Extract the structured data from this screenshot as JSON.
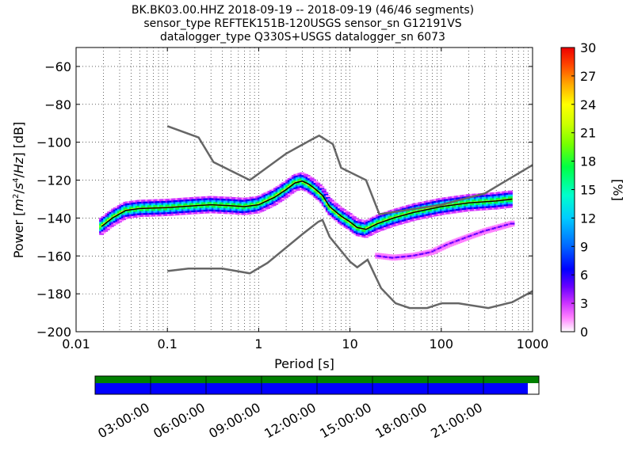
{
  "chart_data": {
    "type": "heatmap",
    "title_lines": [
      "BK.BK03.00.HHZ   2018-09-19 -- 2018-09-19  (46/46 segments)",
      "sensor_type REFTEK151B-120USGS sensor_sn G12191VS",
      "datalogger_type Q330S+USGS datalogger_sn 6073"
    ],
    "xlabel": "Period [s]",
    "ylabel": "Power [m²/s⁴/Hz] [dB]",
    "xscale": "log",
    "xlim": [
      0.01,
      1000
    ],
    "ylim": [
      -200,
      -50
    ],
    "x_ticks": [
      {
        "v": 0.01,
        "label": "0.01"
      },
      {
        "v": 0.1,
        "label": "0.1"
      },
      {
        "v": 1,
        "label": "1"
      },
      {
        "v": 10,
        "label": "10"
      },
      {
        "v": 100,
        "label": "100"
      },
      {
        "v": 1000,
        "label": "1000"
      }
    ],
    "y_ticks": [
      -60,
      -80,
      -100,
      -120,
      -140,
      -160,
      -180,
      -200
    ],
    "grid": true,
    "colorbar": {
      "label": "[%]",
      "range": [
        0,
        30
      ],
      "ticks": [
        0,
        3,
        6,
        9,
        12,
        15,
        18,
        21,
        24,
        27,
        30
      ]
    },
    "noise_models": [
      {
        "name": "high",
        "points": [
          [
            0.1,
            -91.5
          ],
          [
            0.22,
            -97.5
          ],
          [
            0.32,
            -110.5
          ],
          [
            0.8,
            -120
          ],
          [
            2,
            -106
          ],
          [
            4,
            -98
          ],
          [
            4.6,
            -96.5
          ],
          [
            6.5,
            -101
          ],
          [
            8,
            -113.5
          ],
          [
            15,
            -120
          ],
          [
            21,
            -138
          ],
          [
            100,
            -133
          ],
          [
            300,
            -127
          ],
          [
            1000,
            -112
          ]
        ]
      },
      {
        "name": "low",
        "points": [
          [
            0.1,
            -168
          ],
          [
            0.17,
            -166.7
          ],
          [
            0.4,
            -166.7
          ],
          [
            0.8,
            -169.2
          ],
          [
            1.25,
            -163.7
          ],
          [
            3,
            -148.6
          ],
          [
            4.5,
            -142
          ],
          [
            5,
            -141
          ],
          [
            6,
            -150
          ],
          [
            10,
            -163
          ],
          [
            12,
            -166
          ],
          [
            15.6,
            -162
          ],
          [
            21.9,
            -177
          ],
          [
            31.6,
            -185
          ],
          [
            45,
            -187.5
          ],
          [
            70,
            -187.5
          ],
          [
            101,
            -185
          ],
          [
            154,
            -185
          ],
          [
            328,
            -187.5
          ],
          [
            600,
            -184.4
          ],
          [
            1000,
            -178.6
          ]
        ]
      }
    ],
    "psd_bands": [
      {
        "name": "main",
        "points": [
          [
            0.019,
            -144.5
          ],
          [
            0.025,
            -140
          ],
          [
            0.035,
            -136
          ],
          [
            0.05,
            -135
          ],
          [
            0.1,
            -134.5
          ],
          [
            0.2,
            -133.5
          ],
          [
            0.3,
            -133
          ],
          [
            0.5,
            -133.5
          ],
          [
            0.7,
            -134
          ],
          [
            1,
            -133
          ],
          [
            1.5,
            -129
          ],
          [
            2,
            -125
          ],
          [
            2.5,
            -121.5
          ],
          [
            3,
            -120.5
          ],
          [
            3.5,
            -122
          ],
          [
            4,
            -124
          ],
          [
            5,
            -128
          ],
          [
            6,
            -134
          ],
          [
            8,
            -139
          ],
          [
            10,
            -142
          ],
          [
            12,
            -145
          ],
          [
            15,
            -146
          ],
          [
            20,
            -143
          ],
          [
            30,
            -140
          ],
          [
            50,
            -137
          ],
          [
            100,
            -134
          ],
          [
            200,
            -132
          ],
          [
            400,
            -131
          ],
          [
            600,
            -130
          ]
        ]
      },
      {
        "name": "secondary",
        "points": [
          [
            20,
            -160
          ],
          [
            30,
            -161
          ],
          [
            50,
            -160
          ],
          [
            80,
            -158
          ],
          [
            120,
            -154
          ],
          [
            200,
            -150
          ],
          [
            300,
            -147
          ],
          [
            600,
            -143
          ]
        ]
      }
    ],
    "segment_status": {
      "time_ticks": [
        "03:00:00",
        "06:00:00",
        "09:00:00",
        "12:00:00",
        "15:00:00",
        "18:00:00",
        "21:00:00"
      ],
      "tick_fractions": [
        0.125,
        0.25,
        0.375,
        0.5,
        0.625,
        0.75,
        0.875
      ],
      "data_coverage": 1.0,
      "processed_coverage": 0.975
    },
    "colors": {
      "noise_model": "#666666",
      "mean_line": "#000000",
      "coverage": "#008000",
      "processed": "#0000ff"
    }
  }
}
